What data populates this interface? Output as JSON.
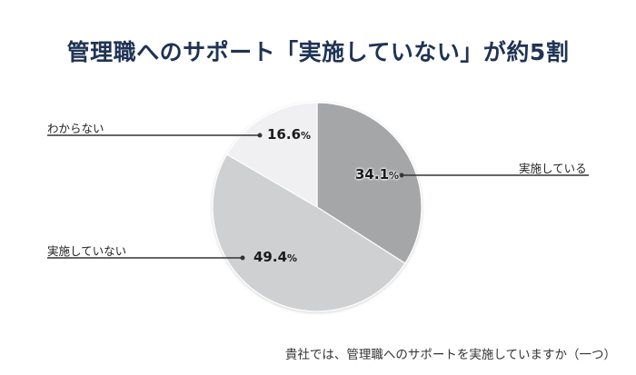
{
  "title": "管理職へのサポート「実施していない」が約5割",
  "caption": "貴社では、管理職へのサポートを実施していますか（一つ）",
  "colors": {
    "title": "#1f3354",
    "slice_implemented": "#a5a6a8",
    "slice_not_implemented": "#cfd0d2",
    "slice_unknown": "#f0f0f2",
    "leader_line": "#333333"
  },
  "slices": [
    {
      "label": "実施している",
      "value": "34.1",
      "unit": "%"
    },
    {
      "label": "実施していない",
      "value": "49.4",
      "unit": "%"
    },
    {
      "label": "わからない",
      "value": "16.6",
      "unit": "%"
    }
  ],
  "chart_data": {
    "type": "pie",
    "title": "管理職へのサポート「実施していない」が約5割",
    "subtitle": "貴社では、管理職へのサポートを実施していますか（一つ）",
    "categories": [
      "実施している",
      "実施していない",
      "わからない"
    ],
    "values": [
      34.1,
      49.4,
      16.6
    ],
    "unit": "%",
    "start_angle": "12 o'clock",
    "direction": "clockwise",
    "legend": "none (leader-line labels)"
  }
}
